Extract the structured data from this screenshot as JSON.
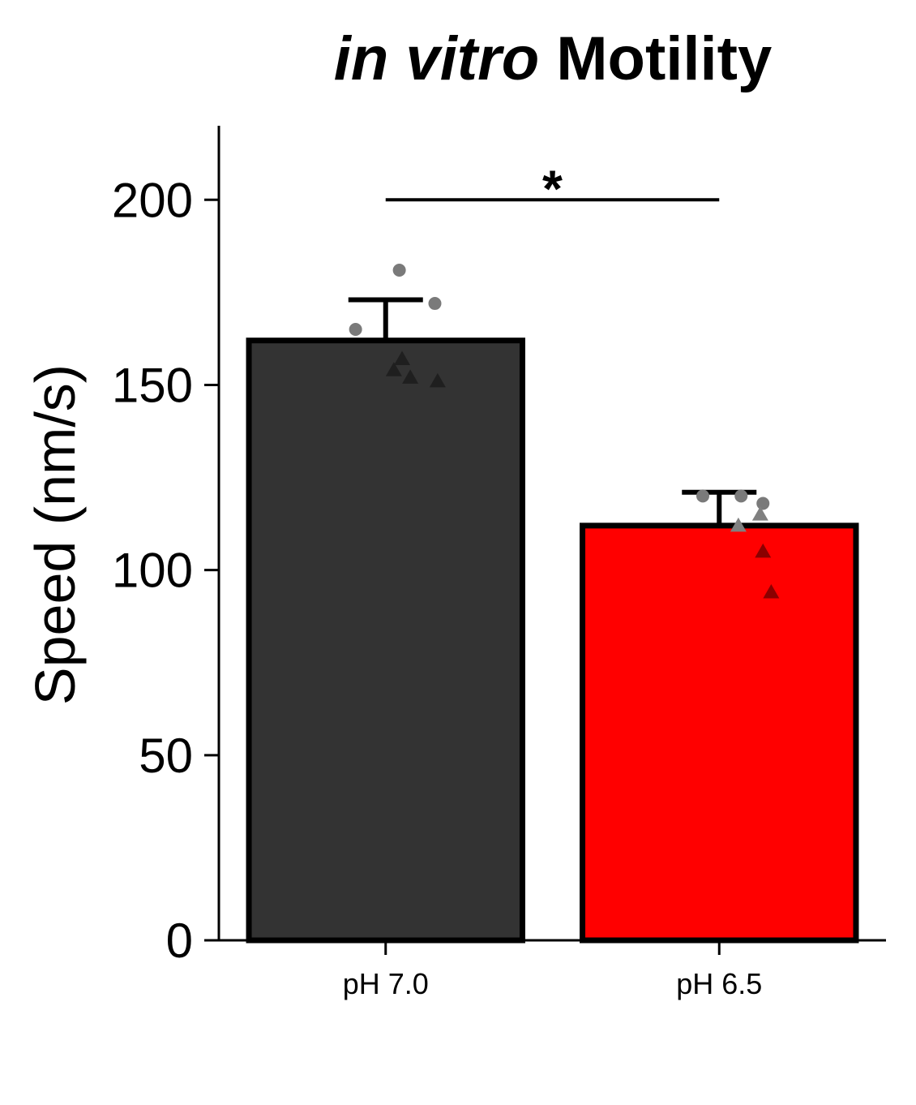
{
  "chart_data": {
    "type": "bar",
    "title": {
      "italic_part": "in vitro",
      "plain_part": "Motility"
    },
    "xlabel": "",
    "ylabel": "Speed (nm/s)",
    "ylim": [
      0,
      220
    ],
    "yticks": [
      0,
      50,
      100,
      150,
      200
    ],
    "categories": [
      "pH 7.0",
      "pH 6.5"
    ],
    "values": [
      162,
      112
    ],
    "error_upper": [
      173,
      121
    ],
    "colors": [
      "#333333",
      "#ff0000"
    ],
    "points": [
      [
        {
          "value": 181,
          "marker": "circle",
          "color": "#7a7a7a",
          "jitter": 0.05
        },
        {
          "value": 172,
          "marker": "circle",
          "color": "#7a7a7a",
          "jitter": 0.18
        },
        {
          "value": 165,
          "marker": "circle",
          "color": "#7a7a7a",
          "jitter": -0.11
        },
        {
          "value": 157,
          "marker": "triangle",
          "color": "#1f1f1f",
          "jitter": 0.06
        },
        {
          "value": 154,
          "marker": "triangle",
          "color": "#1f1f1f",
          "jitter": 0.03
        },
        {
          "value": 152,
          "marker": "triangle",
          "color": "#1f1f1f",
          "jitter": 0.09
        },
        {
          "value": 151,
          "marker": "triangle",
          "color": "#1f1f1f",
          "jitter": 0.19
        }
      ],
      [
        {
          "value": 120,
          "marker": "circle",
          "color": "#7a7a7a",
          "jitter": -0.06
        },
        {
          "value": 120,
          "marker": "circle",
          "color": "#7a7a7a",
          "jitter": 0.08
        },
        {
          "value": 118,
          "marker": "circle",
          "color": "#7a7a7a",
          "jitter": 0.16
        },
        {
          "value": 115,
          "marker": "triangle",
          "color": "#808080",
          "jitter": 0.15
        },
        {
          "value": 112,
          "marker": "triangle",
          "color": "#808080",
          "jitter": 0.07
        },
        {
          "value": 105,
          "marker": "triangle",
          "color": "#8b0000",
          "jitter": 0.16
        },
        {
          "value": 94,
          "marker": "triangle",
          "color": "#8b0000",
          "jitter": 0.19
        }
      ]
    ],
    "significance": {
      "from": "pH 7.0",
      "to": "pH 6.5",
      "value": 200,
      "label": "*"
    },
    "grid": false,
    "legend": "none"
  }
}
